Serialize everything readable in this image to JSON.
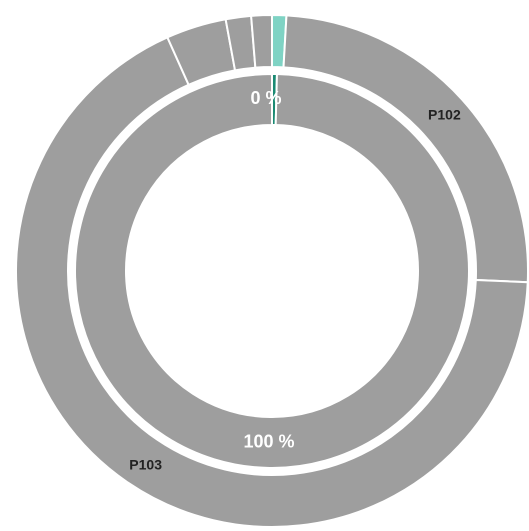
{
  "chart_data": {
    "type": "pie",
    "variant": "nested-donut",
    "rings": [
      {
        "ring": "inner",
        "slices": [
          {
            "name": "",
            "value": 0.4,
            "label": "0 %",
            "color": "#1a8a73"
          },
          {
            "name": "",
            "value": 99.6,
            "label": "100 %",
            "color": "#9e9e9e"
          }
        ]
      },
      {
        "ring": "outer",
        "slices": [
          {
            "name": "",
            "value": 0.9,
            "label": "",
            "color": "#7fd3c4"
          },
          {
            "name": "P102",
            "value": 24.8,
            "label": "P102",
            "color": "#9e9e9e"
          },
          {
            "name": "P103",
            "value": 67.6,
            "label": "P103",
            "color": "#9e9e9e"
          },
          {
            "name": "",
            "value": 3.8,
            "label": "",
            "color": "#9e9e9e"
          },
          {
            "name": "",
            "value": 1.6,
            "label": "",
            "color": "#9e9e9e"
          },
          {
            "name": "",
            "value": 1.3,
            "label": "",
            "color": "#9e9e9e"
          }
        ]
      }
    ],
    "legend": "none",
    "start_angle": "top",
    "direction": "clockwise"
  }
}
